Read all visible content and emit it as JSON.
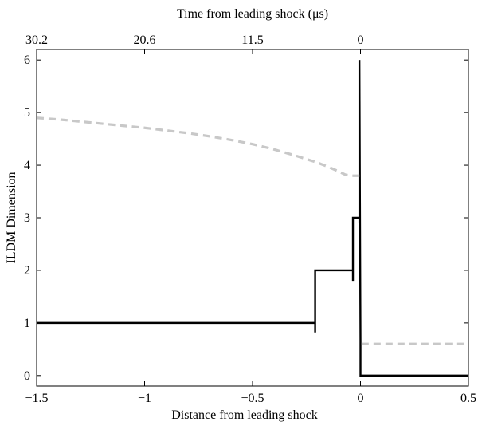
{
  "chart_data": {
    "type": "line",
    "title": "",
    "xlabel": "Distance from leading shock",
    "ylabel": "ILDM Dimension",
    "top_xlabel": "Time from leading shock (μs)",
    "xlim": [
      -1.5,
      0.5
    ],
    "ylim": [
      -0.2,
      6.2
    ],
    "grid": false,
    "x_ticks": [
      -1.5,
      -1,
      -0.5,
      0,
      0.5
    ],
    "x_tick_labels": [
      "−1.5",
      "−1",
      "−0.5",
      "0",
      "0.5"
    ],
    "y_ticks": [
      0,
      1,
      2,
      3,
      4,
      5,
      6
    ],
    "y_tick_labels": [
      "0",
      "1",
      "2",
      "3",
      "4",
      "5",
      "6"
    ],
    "top_ticks": [
      -1.5,
      -1.0,
      -0.5,
      0
    ],
    "top_tick_labels": [
      "30.2",
      "20.6",
      "11.5",
      "0"
    ],
    "series": [
      {
        "color": "#000000",
        "style": "solid",
        "x": [
          -1.5,
          -0.21,
          -0.21,
          -0.21,
          -0.21,
          -0.035,
          -0.035,
          -0.035,
          -0.035,
          -0.005,
          -0.005,
          -0.005,
          -0.005,
          0.0,
          0.0,
          0.5
        ],
        "y": [
          1,
          1,
          0.82,
          0.82,
          2,
          2,
          1.8,
          1.8,
          3,
          3,
          2.9,
          2.9,
          6,
          0.65,
          0,
          0
        ]
      },
      {
        "color": "#c8c8c8",
        "style": "dashed",
        "x": [
          -1.5,
          -1.4,
          -1.3,
          -1.2,
          -1.1,
          -1.0,
          -0.9,
          -0.8,
          -0.7,
          -0.6,
          -0.5,
          -0.4,
          -0.3,
          -0.2,
          -0.15,
          -0.1,
          -0.07,
          -0.04,
          -0.02,
          -0.005
        ],
        "y": [
          4.9,
          4.87,
          4.83,
          4.79,
          4.75,
          4.71,
          4.66,
          4.61,
          4.55,
          4.48,
          4.4,
          4.3,
          4.18,
          4.05,
          3.97,
          3.88,
          3.82,
          3.8,
          3.8,
          3.8
        ]
      },
      {
        "color": "#c8c8c8",
        "style": "dashed",
        "x": [
          0.005,
          0.5
        ],
        "y": [
          0.6,
          0.6
        ]
      }
    ]
  }
}
